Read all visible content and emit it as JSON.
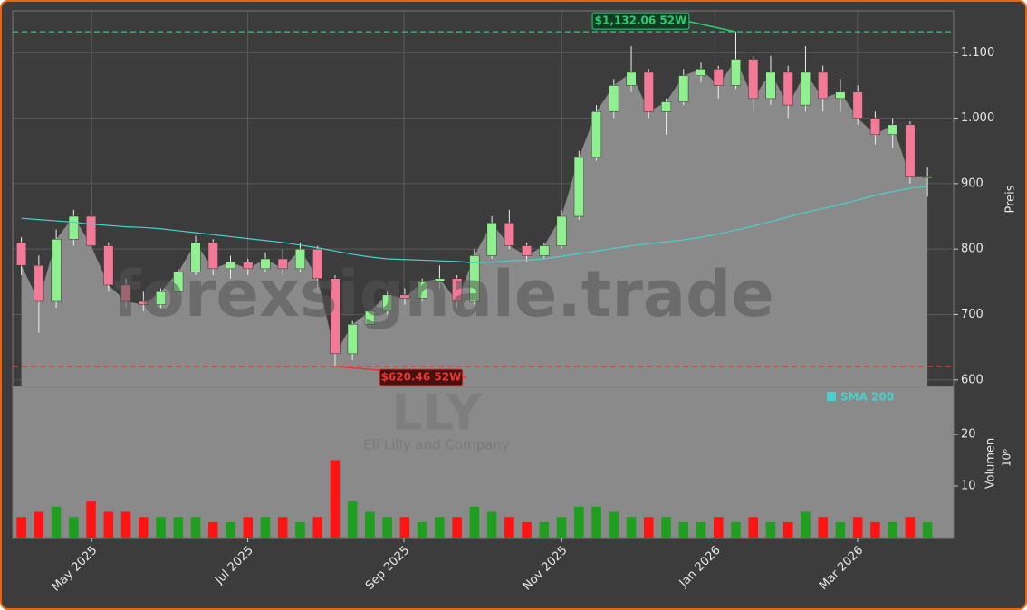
{
  "chart_data": {
    "type": "candlestick",
    "watermark": "forexsignale.trade",
    "symbol": "LLY",
    "company": "Eli Lilly and Company",
    "y_label": "Preis",
    "categories": [
      null,
      null,
      null,
      null,
      null,
      null,
      null,
      null,
      null,
      null,
      null,
      null,
      null,
      null,
      null,
      null,
      null,
      null,
      null,
      null,
      null,
      null,
      null,
      null,
      null,
      null,
      null,
      null,
      null,
      null,
      null,
      null,
      null,
      null,
      null,
      null,
      null,
      null,
      null,
      null,
      null,
      null,
      null,
      null,
      null,
      null,
      null,
      null,
      null,
      null,
      null,
      null,
      null
    ],
    "xlim": [
      -0.5,
      53.5
    ],
    "xticks": [
      {
        "value": 4.03,
        "label": "May 2025"
      },
      {
        "value": 12.99,
        "label": "Jul 2025"
      },
      {
        "value": 21.95,
        "label": "Sep 2025"
      },
      {
        "value": 31.01,
        "label": "Nov 2025"
      },
      {
        "value": 39.8,
        "label": "Jan 2026"
      },
      {
        "value": 47.99,
        "label": "Mar 2026"
      }
    ],
    "open": [
      810,
      775,
      720,
      815,
      850,
      805,
      745,
      720,
      715,
      735,
      765,
      810,
      770,
      780,
      770,
      785,
      770,
      800,
      755,
      640,
      685,
      705,
      730,
      725,
      750,
      755,
      720,
      790,
      840,
      805,
      790,
      805,
      850,
      940,
      1010,
      1050,
      1070,
      1010,
      1025,
      1065,
      1075,
      1050,
      1090,
      1030,
      1070,
      1020,
      1070,
      1030,
      1040,
      1000,
      975,
      990,
      910
    ],
    "high": [
      818,
      790,
      830,
      860,
      895,
      810,
      755,
      735,
      740,
      770,
      820,
      815,
      790,
      785,
      795,
      800,
      810,
      805,
      760,
      690,
      710,
      735,
      740,
      755,
      775,
      760,
      800,
      850,
      860,
      810,
      810,
      860,
      950,
      1020,
      1060,
      1110,
      1075,
      1030,
      1075,
      1085,
      1080,
      1132.06,
      1095,
      1095,
      1080,
      1110,
      1080,
      1060,
      1050,
      1010,
      1000,
      995,
      925
    ],
    "low": [
      760,
      672,
      710,
      805,
      800,
      735,
      710,
      705,
      710,
      730,
      760,
      760,
      755,
      760,
      765,
      760,
      765,
      740,
      620.46,
      630,
      680,
      700,
      715,
      720,
      740,
      710,
      715,
      785,
      800,
      780,
      785,
      800,
      845,
      935,
      1000,
      1040,
      1000,
      975,
      1020,
      1055,
      1030,
      1045,
      1010,
      1020,
      1000,
      1010,
      1010,
      1010,
      990,
      960,
      955,
      900,
      880
    ],
    "close": [
      775,
      720,
      815,
      850,
      805,
      745,
      720,
      715,
      735,
      765,
      810,
      770,
      780,
      770,
      785,
      770,
      800,
      755,
      640,
      685,
      705,
      730,
      725,
      750,
      755,
      720,
      790,
      840,
      805,
      790,
      805,
      850,
      940,
      1010,
      1050,
      1070,
      1010,
      1025,
      1065,
      1075,
      1050,
      1090,
      1030,
      1070,
      1020,
      1070,
      1030,
      1040,
      1000,
      975,
      990,
      910,
      910
    ],
    "ylim": [
      590,
      1164
    ],
    "yticks": [
      600,
      700,
      800,
      900,
      {
        "value": 1000,
        "label": "1.000"
      },
      {
        "value": 1100,
        "label": "1.100"
      }
    ],
    "grid": true,
    "up_color": "#8ef08e",
    "down_color": "#f27a97",
    "area_color": "#8a8a8a",
    "series": [
      {
        "name": "SMA 200",
        "color": "#48d1cc",
        "values": [
          847,
          845,
          843,
          841,
          838,
          836,
          834,
          833,
          831,
          828,
          825,
          822,
          819,
          816,
          813,
          810,
          806,
          802,
          797,
          792,
          788,
          785,
          784,
          783,
          782,
          781,
          779,
          780,
          782,
          783,
          785,
          789,
          793,
          797,
          801,
          805,
          808,
          811,
          814,
          818,
          823,
          829,
          835,
          842,
          849,
          856,
          862,
          868,
          875,
          882,
          888,
          893,
          896
        ]
      }
    ],
    "legend": "upper right",
    "annotations": [
      {
        "text": "$1,132.06 52W",
        "value": 1132.06,
        "color": "#2ecc71"
      },
      {
        "text": "$620.46 52W",
        "value": 620.46,
        "color": "#e53935"
      }
    ],
    "volume": {
      "label": "Volumen",
      "unit": "10⁶",
      "values": [
        4,
        5,
        6,
        4,
        7,
        5,
        5,
        4,
        4,
        4,
        4,
        3,
        3,
        4,
        4,
        4,
        3,
        4,
        15,
        7,
        5,
        4,
        4,
        3,
        4,
        4,
        6,
        5,
        4,
        3,
        3,
        4,
        6,
        6,
        5,
        4,
        4,
        4,
        3,
        3,
        4,
        3,
        4,
        3,
        3,
        5,
        4,
        3,
        4,
        3,
        3,
        4,
        3
      ],
      "ylim": [
        0,
        29.3
      ],
      "yticks": [
        10,
        20
      ],
      "up_color": "#1f9e1f",
      "down_color": "#ff1414"
    }
  }
}
